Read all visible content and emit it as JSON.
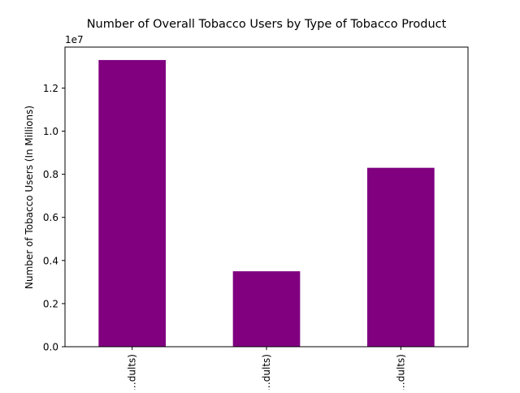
{
  "chart_data": {
    "type": "bar",
    "title": "Number of Overall Tobacco Users by Type of Tobacco Product",
    "xlabel": "",
    "ylabel": "Number of Tobacco Users (In Millions)",
    "categories": [
      "…dults)",
      "…dults)",
      "…dults)"
    ],
    "values": [
      13300000,
      3500000,
      8300000
    ],
    "ylim": [
      0,
      13900000
    ],
    "yticks": [
      0,
      2000000,
      4000000,
      6000000,
      8000000,
      10000000,
      12000000
    ],
    "ytick_labels": [
      "0.0",
      "0.2",
      "0.4",
      "0.6",
      "0.8",
      "1.0",
      "1.2"
    ],
    "y_offset_label": "1e7",
    "grid": false,
    "legend": "none",
    "bar_color": "#800080"
  }
}
